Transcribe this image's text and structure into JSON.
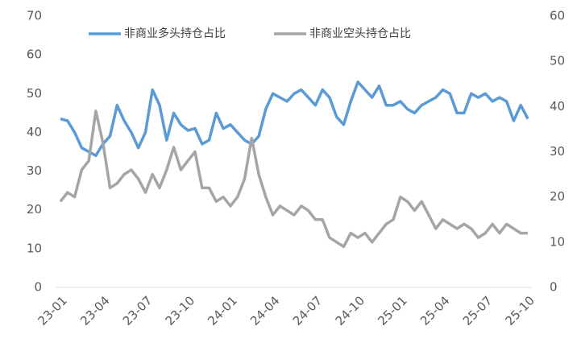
{
  "chart_data": {
    "type": "line",
    "categories": [
      "23-01",
      null,
      null,
      null,
      null,
      null,
      "23-04",
      null,
      null,
      null,
      null,
      null,
      "23-07",
      null,
      null,
      null,
      null,
      null,
      "23-10",
      null,
      null,
      null,
      null,
      null,
      "24-01",
      null,
      null,
      null,
      null,
      null,
      "24-04",
      null,
      null,
      null,
      null,
      null,
      "24-07",
      null,
      null,
      null,
      null,
      null,
      "24-10",
      null,
      null,
      null,
      null,
      null,
      "25-01",
      null,
      null,
      null,
      null,
      null,
      "25-04",
      null,
      null,
      null,
      null,
      null,
      "25-07",
      null,
      null,
      null,
      null,
      null,
      "25-10"
    ],
    "series": [
      {
        "name": "非商业多头持仓占比",
        "color": "#5b9bd5",
        "axis": "y",
        "values": [
          43.5,
          43,
          40,
          36,
          35,
          34,
          37,
          39,
          47,
          43,
          40,
          36,
          40,
          51,
          47,
          38,
          45,
          42,
          40.5,
          41,
          37,
          38,
          45,
          41,
          42,
          40,
          38,
          37,
          39,
          46,
          50,
          49,
          48,
          50,
          51,
          49,
          47,
          51,
          49,
          44,
          42,
          48,
          53,
          51,
          49,
          52,
          47,
          47,
          48,
          46,
          45,
          47,
          48,
          49,
          51,
          50,
          45,
          45,
          50,
          49,
          50,
          48,
          49,
          48,
          43,
          47,
          43.5
        ]
      },
      {
        "name": "非商业空头持仓占比",
        "color": "#a5a5a5",
        "axis": "y2",
        "values": [
          19,
          21,
          20,
          26,
          28,
          39,
          32,
          22,
          23,
          25,
          26,
          24,
          21,
          25,
          22,
          26,
          31,
          26,
          28,
          30,
          22,
          22,
          19,
          20,
          18,
          20,
          24,
          33,
          25,
          20,
          16,
          18,
          17,
          16,
          18,
          17,
          15,
          15,
          11,
          10,
          9,
          12,
          11,
          12,
          10,
          12,
          14,
          15,
          20,
          19,
          17,
          19,
          16,
          13,
          15,
          14,
          13,
          14,
          13,
          11,
          12,
          14,
          12,
          14,
          13,
          12,
          12
        ]
      }
    ],
    "ylim": [
      0,
      70
    ],
    "yticks": [
      0,
      10,
      20,
      30,
      40,
      50,
      60,
      70
    ],
    "y2lim": [
      0,
      60
    ],
    "y2ticks": [
      0,
      10,
      20,
      30,
      40,
      50,
      60
    ],
    "grid": false,
    "legend": "top"
  }
}
